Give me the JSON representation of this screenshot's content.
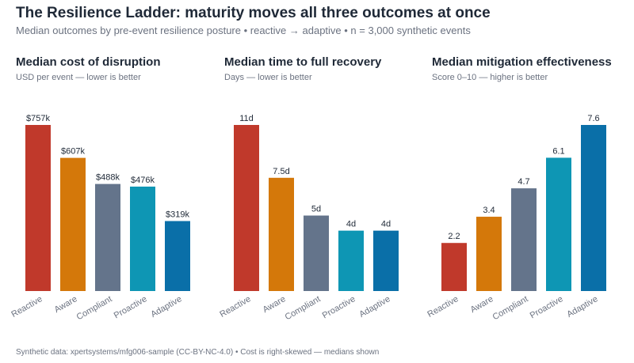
{
  "header": {
    "title": "The Resilience Ladder: maturity moves all three outcomes at once",
    "subtitle": "Median outcomes by pre-event resilience posture  •  reactive → adaptive  •  n = 3,000 synthetic events"
  },
  "footer": {
    "text": "Synthetic data: xpertsystems/mfg006-sample (CC-BY-NC-4.0)  •  Cost is right-skewed — medians shown"
  },
  "colors": {
    "Reactive": "#c0392b",
    "Aware": "#d4780a",
    "Compliant": "#64748b",
    "Proactive": "#0e96b4",
    "Adaptive": "#0a6fa8"
  },
  "chart_data": [
    {
      "type": "bar",
      "title": "Median cost of disruption",
      "subtitle": "USD per event  —  lower is better",
      "categories": [
        "Reactive",
        "Aware",
        "Compliant",
        "Proactive",
        "Adaptive"
      ],
      "values": [
        757,
        607,
        488,
        476,
        319
      ],
      "labels": [
        "$757k",
        "$607k",
        "$488k",
        "$476k",
        "$319k"
      ],
      "ylim": [
        0,
        757
      ],
      "grid": false,
      "legend": "none"
    },
    {
      "type": "bar",
      "title": "Median time to full recovery",
      "subtitle": "Days  —  lower is better",
      "categories": [
        "Reactive",
        "Aware",
        "Compliant",
        "Proactive",
        "Adaptive"
      ],
      "values": [
        11,
        7.5,
        5,
        4,
        4
      ],
      "labels": [
        "11d",
        "7.5d",
        "5d",
        "4d",
        "4d"
      ],
      "ylim": [
        0,
        11
      ],
      "grid": false,
      "legend": "none"
    },
    {
      "type": "bar",
      "title": "Median mitigation effectiveness",
      "subtitle": "Score 0–10  —  higher is better",
      "categories": [
        "Reactive",
        "Aware",
        "Compliant",
        "Proactive",
        "Adaptive"
      ],
      "values": [
        2.2,
        3.4,
        4.7,
        6.1,
        7.6
      ],
      "labels": [
        "2.2",
        "3.4",
        "4.7",
        "6.1",
        "7.6"
      ],
      "ylim": [
        0,
        7.6
      ],
      "grid": false,
      "legend": "none"
    }
  ]
}
